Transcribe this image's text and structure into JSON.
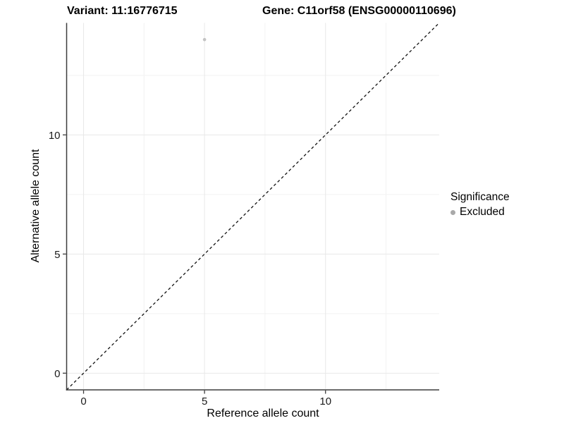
{
  "titles": {
    "variant": "Variant: 11:16776715",
    "gene": "Gene: C11orf58 (ENSG00000110696)"
  },
  "axes": {
    "x_label": "Reference allele count",
    "y_label": "Alternative allele count"
  },
  "legend": {
    "title": "Significance",
    "items": [
      {
        "label": "Excluded",
        "color": "#a9a9a9"
      }
    ]
  },
  "colors": {
    "background": "#ffffff",
    "axis_line": "#3d3d3d",
    "tick_label": "#1a1a1a",
    "grid_major": "#e8e8e8",
    "grid_minor": "#f2f2f2",
    "identity_line": "#111111",
    "point": "#c3c3c3"
  },
  "chart_data": {
    "type": "scatter",
    "title": "Variant: 11:16776715   Gene: C11orf58 (ENSG00000110696)",
    "xlabel": "Reference allele count",
    "ylabel": "Alternative allele count",
    "xlim": [
      -0.7,
      14.7
    ],
    "ylim": [
      -0.7,
      14.7
    ],
    "x_major_ticks": [
      0,
      5,
      10
    ],
    "y_major_ticks": [
      0,
      5,
      10
    ],
    "x_minor_ticks": [
      2.5,
      7.5,
      12.5
    ],
    "y_minor_ticks": [
      2.5,
      7.5,
      12.5
    ],
    "grid": "major and minor gridlines, light grey on white",
    "legend_position": "right",
    "series": [
      {
        "name": "Excluded",
        "points": [
          {
            "x": 5,
            "y": 14
          }
        ]
      }
    ],
    "reference_line": {
      "kind": "identity y=x",
      "style": "dashed",
      "from": [
        -0.7,
        -0.7
      ],
      "to": [
        14.7,
        14.7
      ]
    }
  }
}
